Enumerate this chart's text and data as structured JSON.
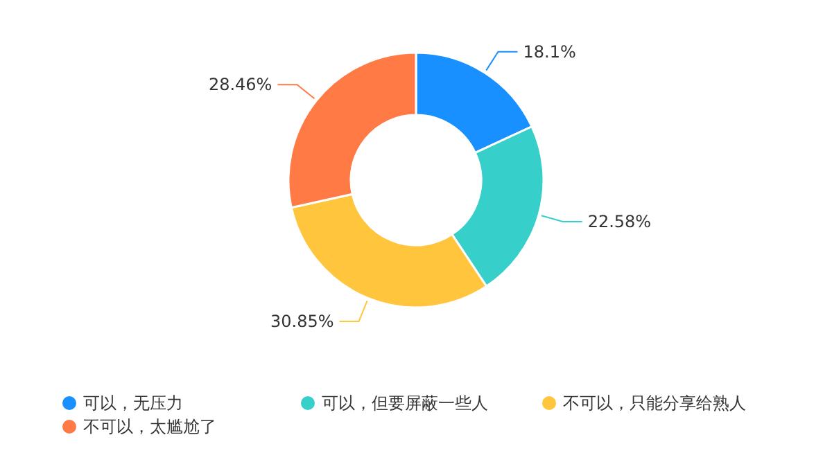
{
  "chart_data": {
    "type": "donut",
    "categories": [
      "可以，无压力",
      "可以，但要屏蔽一些人",
      "不可以，只能分享给熟人",
      "不可以，太尴尬了"
    ],
    "values": [
      18.1,
      22.58,
      30.85,
      28.46
    ],
    "colors": [
      "#1890ff",
      "#36cfc9",
      "#ffc53d",
      "#ff7a45"
    ],
    "value_labels": [
      "18.1%",
      "22.58%",
      "30.85%",
      "28.46%"
    ],
    "legend": "bottom"
  }
}
